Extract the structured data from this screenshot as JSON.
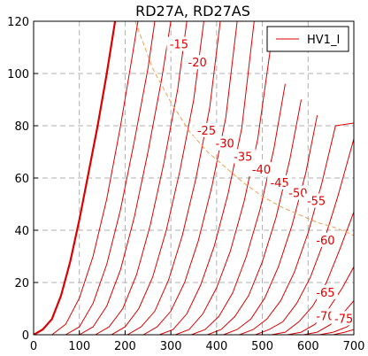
{
  "chart_data": {
    "type": "line",
    "title": "RD27A, RD27AS",
    "xlim": [
      0,
      700
    ],
    "ylim": [
      0,
      120
    ],
    "xticks": [
      "0",
      "100",
      "200",
      "300",
      "400",
      "500",
      "600",
      "700"
    ],
    "yticks": [
      "0",
      "20",
      "40",
      "60",
      "80",
      "100",
      "120"
    ],
    "grid": true,
    "legend": {
      "label": "HV1_I",
      "placement": "top-right"
    },
    "series": [
      {
        "label": "",
        "bold": true,
        "points": [
          [
            0,
            0
          ],
          [
            20,
            2
          ],
          [
            40,
            6
          ],
          [
            60,
            15
          ],
          [
            80,
            28
          ],
          [
            100,
            44
          ],
          [
            120,
            62
          ],
          [
            140,
            80
          ],
          [
            160,
            100
          ],
          [
            178,
            120
          ]
        ]
      },
      {
        "label": "",
        "bold": false,
        "points": [
          [
            40,
            0
          ],
          [
            70,
            4
          ],
          [
            100,
            14
          ],
          [
            130,
            30
          ],
          [
            160,
            52
          ],
          [
            190,
            80
          ],
          [
            215,
            106
          ],
          [
            228,
            120
          ]
        ]
      },
      {
        "label": "-15",
        "bold": false,
        "points": [
          [
            70,
            0
          ],
          [
            100,
            3
          ],
          [
            130,
            12
          ],
          [
            160,
            27
          ],
          [
            190,
            48
          ],
          [
            220,
            74
          ],
          [
            250,
            102
          ],
          [
            265,
            120
          ]
        ]
      },
      {
        "label": "-20",
        "bold": false,
        "points": [
          [
            100,
            0
          ],
          [
            130,
            3
          ],
          [
            160,
            11
          ],
          [
            190,
            25
          ],
          [
            220,
            45
          ],
          [
            250,
            70
          ],
          [
            280,
            98
          ],
          [
            300,
            120
          ]
        ]
      },
      {
        "label": "",
        "bold": false,
        "points": [
          [
            135,
            0
          ],
          [
            165,
            3
          ],
          [
            195,
            10
          ],
          [
            225,
            23
          ],
          [
            255,
            42
          ],
          [
            285,
            66
          ],
          [
            315,
            94
          ],
          [
            335,
            120
          ]
        ]
      },
      {
        "label": "",
        "bold": false,
        "points": [
          [
            170,
            0
          ],
          [
            200,
            3
          ],
          [
            230,
            10
          ],
          [
            260,
            22
          ],
          [
            290,
            40
          ],
          [
            320,
            63
          ],
          [
            350,
            90
          ],
          [
            372,
            120
          ]
        ]
      },
      {
        "label": "-25",
        "bold": false,
        "points": [
          [
            205,
            0
          ],
          [
            235,
            3
          ],
          [
            265,
            9
          ],
          [
            295,
            21
          ],
          [
            325,
            38
          ],
          [
            355,
            60
          ],
          [
            385,
            87
          ],
          [
            408,
            120
          ]
        ]
      },
      {
        "label": "-30",
        "bold": false,
        "points": [
          [
            240,
            0
          ],
          [
            270,
            3
          ],
          [
            300,
            9
          ],
          [
            330,
            20
          ],
          [
            360,
            36
          ],
          [
            390,
            57
          ],
          [
            420,
            83
          ],
          [
            445,
            120
          ]
        ]
      },
      {
        "label": "-35",
        "bold": false,
        "points": [
          [
            275,
            0
          ],
          [
            305,
            2
          ],
          [
            335,
            8
          ],
          [
            365,
            19
          ],
          [
            395,
            34
          ],
          [
            425,
            54
          ],
          [
            455,
            79
          ],
          [
            482,
            120
          ]
        ]
      },
      {
        "label": "-40",
        "bold": false,
        "points": [
          [
            310,
            0
          ],
          [
            340,
            2
          ],
          [
            370,
            8
          ],
          [
            400,
            18
          ],
          [
            430,
            32
          ],
          [
            460,
            51
          ],
          [
            490,
            75
          ],
          [
            518,
            110
          ]
        ]
      },
      {
        "label": "-45",
        "bold": false,
        "points": [
          [
            345,
            0
          ],
          [
            375,
            2
          ],
          [
            405,
            7
          ],
          [
            435,
            16
          ],
          [
            465,
            30
          ],
          [
            495,
            48
          ],
          [
            525,
            71
          ],
          [
            550,
            96
          ]
        ]
      },
      {
        "label": "-50",
        "bold": false,
        "points": [
          [
            380,
            0
          ],
          [
            410,
            2
          ],
          [
            440,
            7
          ],
          [
            470,
            15
          ],
          [
            500,
            28
          ],
          [
            530,
            45
          ],
          [
            560,
            67
          ],
          [
            585,
            90
          ]
        ]
      },
      {
        "label": "-55",
        "bold": false,
        "points": [
          [
            415,
            0
          ],
          [
            445,
            2
          ],
          [
            475,
            6
          ],
          [
            505,
            14
          ],
          [
            535,
            26
          ],
          [
            565,
            42
          ],
          [
            595,
            62
          ],
          [
            620,
            84
          ]
        ]
      },
      {
        "label": "",
        "bold": false,
        "points": [
          [
            450,
            0
          ],
          [
            480,
            2
          ],
          [
            510,
            6
          ],
          [
            540,
            13
          ],
          [
            570,
            24
          ],
          [
            600,
            39
          ],
          [
            630,
            58
          ],
          [
            660,
            80
          ],
          [
            700,
            81
          ]
        ]
      },
      {
        "label": "-60",
        "bold": false,
        "points": [
          [
            485,
            0
          ],
          [
            515,
            2
          ],
          [
            545,
            5
          ],
          [
            575,
            12
          ],
          [
            605,
            22
          ],
          [
            635,
            36
          ],
          [
            665,
            53
          ],
          [
            700,
            75
          ]
        ]
      },
      {
        "label": "",
        "bold": false,
        "points": [
          [
            520,
            0
          ],
          [
            550,
            1
          ],
          [
            580,
            5
          ],
          [
            610,
            11
          ],
          [
            640,
            20
          ],
          [
            670,
            33
          ],
          [
            700,
            47
          ]
        ]
      },
      {
        "label": "-65",
        "bold": false,
        "points": [
          [
            555,
            0
          ],
          [
            585,
            1
          ],
          [
            615,
            4
          ],
          [
            645,
            10
          ],
          [
            675,
            18
          ],
          [
            700,
            26
          ]
        ]
      },
      {
        "label": "",
        "bold": false,
        "points": [
          [
            590,
            0
          ],
          [
            620,
            1
          ],
          [
            650,
            4
          ],
          [
            680,
            9
          ],
          [
            700,
            13
          ]
        ]
      },
      {
        "label": "-70",
        "bold": false,
        "points": [
          [
            625,
            0
          ],
          [
            655,
            1
          ],
          [
            685,
            3
          ],
          [
            700,
            5
          ]
        ]
      },
      {
        "label": "-75",
        "bold": false,
        "points": [
          [
            655,
            0
          ],
          [
            680,
            1
          ],
          [
            700,
            2
          ]
        ]
      }
    ],
    "dissipation_curve": [
      [
        222,
        120
      ],
      [
        260,
        102
      ],
      [
        300,
        89
      ],
      [
        340,
        78
      ],
      [
        380,
        70
      ],
      [
        420,
        64
      ],
      [
        460,
        58
      ],
      [
        500,
        53
      ],
      [
        540,
        49
      ],
      [
        580,
        46
      ],
      [
        620,
        43
      ],
      [
        660,
        41
      ],
      [
        700,
        38
      ]
    ],
    "annotations": [
      {
        "text": "-15",
        "x": 318,
        "y": 111
      },
      {
        "text": "-20",
        "x": 358,
        "y": 104
      },
      {
        "text": "-25",
        "x": 378,
        "y": 78
      },
      {
        "text": "-30",
        "x": 418,
        "y": 73
      },
      {
        "text": "-35",
        "x": 458,
        "y": 68
      },
      {
        "text": "-40",
        "x": 498,
        "y": 63
      },
      {
        "text": "-45",
        "x": 538,
        "y": 58
      },
      {
        "text": "-50",
        "x": 578,
        "y": 54
      },
      {
        "text": "-55",
        "x": 618,
        "y": 51
      },
      {
        "text": "-60",
        "x": 638,
        "y": 36
      },
      {
        "text": "-65",
        "x": 638,
        "y": 16
      },
      {
        "text": "-70",
        "x": 638,
        "y": 7
      },
      {
        "text": "-75",
        "x": 678,
        "y": 6
      }
    ]
  }
}
